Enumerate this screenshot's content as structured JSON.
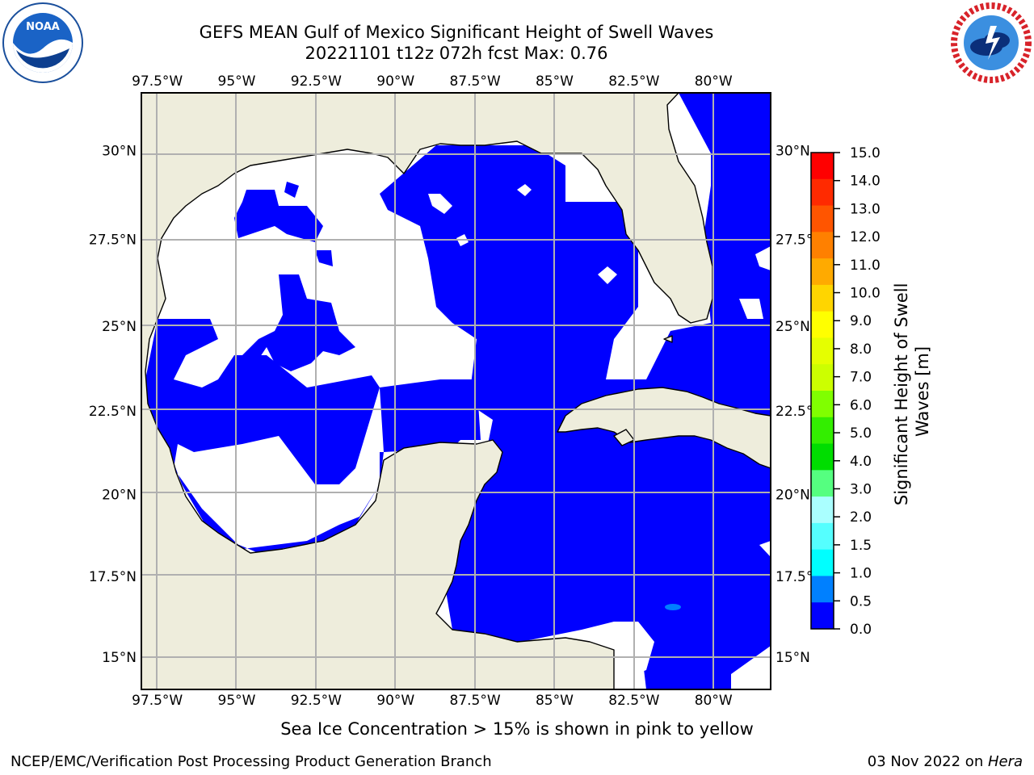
{
  "title": {
    "line1": "GEFS MEAN Gulf of Mexico Significant Height of Swell Waves",
    "line2": "20221101 t12z 072h fcst   Max: 0.76"
  },
  "logos": {
    "left": {
      "icon": "noaa-logo",
      "text": "NOAA"
    },
    "right": {
      "icon": "nws-logo"
    }
  },
  "map": {
    "lon_ticks": [
      "97.5°W",
      "95°W",
      "92.5°W",
      "90°W",
      "87.5°W",
      "85°W",
      "82.5°W",
      "80°W"
    ],
    "lat_ticks": [
      "30°N",
      "27.5°N",
      "25°N",
      "22.5°N",
      "20°N",
      "17.5°N",
      "15°N"
    ],
    "lon_values": [
      -97.5,
      -95,
      -92.5,
      -90,
      -87.5,
      -85,
      -82.5,
      -80
    ],
    "lat_values": [
      30,
      27.5,
      25,
      22.5,
      20,
      17.5,
      15
    ],
    "extent": {
      "lon_min": -98,
      "lon_max": -78.2,
      "lat_min": 14,
      "lat_max": 31.6
    },
    "colors": {
      "land": "#eeeddc",
      "swell_low": "#0000ff",
      "swell_mid": "#0080ff",
      "no_data": "#ffffff",
      "grid": "#b0b0b0"
    }
  },
  "colorbar": {
    "label": "Significant Height of Swell Waves [m]",
    "ticks": [
      "15.0",
      "14.0",
      "13.0",
      "12.0",
      "11.0",
      "10.0",
      "9.0",
      "8.0",
      "7.0",
      "6.0",
      "5.0",
      "4.0",
      "3.0",
      "2.0",
      "1.5",
      "1.0",
      "0.5",
      "0.0"
    ],
    "colors": [
      "#ff0000",
      "#ff2a00",
      "#ff5500",
      "#ff8000",
      "#ffaa00",
      "#ffd500",
      "#ffff00",
      "#e5ff00",
      "#ccff00",
      "#80ff00",
      "#33ee00",
      "#00dd00",
      "#55ff80",
      "#aaffff",
      "#55ffff",
      "#00ffff",
      "#0080ff",
      "#0000ff"
    ]
  },
  "footer": {
    "note": "Sea Ice Concentration > 15% is shown in pink to yellow",
    "credit": "NCEP/EMC/Verification Post Processing Product Generation Branch",
    "date_prefix": "03 Nov 2022 on ",
    "system": "Hera"
  }
}
